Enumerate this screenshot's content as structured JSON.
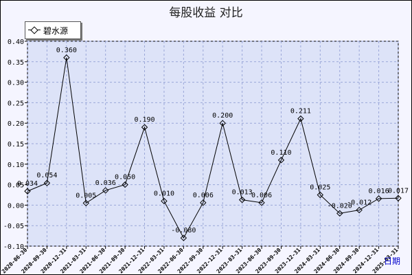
{
  "chart_data": {
    "type": "line",
    "title": "每股收益  对比",
    "xlabel": "日期",
    "ylabel": "",
    "ylim": [
      -0.1,
      0.4
    ],
    "yticks": [
      "-0.10",
      "-0.05",
      "0.00",
      "0.05",
      "0.10",
      "0.15",
      "0.20",
      "0.25",
      "0.30",
      "0.35",
      "0.40"
    ],
    "ytick_values": [
      -0.1,
      -0.05,
      0.0,
      0.05,
      0.1,
      0.15,
      0.2,
      0.25,
      0.3,
      0.35,
      0.4
    ],
    "categories": [
      "2020-06-30",
      "2020-09-30",
      "2020-12-31",
      "2021-03-31",
      "2021-06-30",
      "2021-09-30",
      "2021-12-31",
      "2022-03-31",
      "2022-06-30",
      "2022-09-30",
      "2022-12-31",
      "2023-03-31",
      "2023-06-30",
      "2023-09-30",
      "2023-12-31",
      "2024-03-31",
      "2024-06-30",
      "2024-09-30",
      "2024-12-31",
      "2025-03-31"
    ],
    "grid": true,
    "legend_position": "top-left",
    "series": [
      {
        "name": "碧水源",
        "color": "#000000",
        "values": [
          0.034,
          0.054,
          0.36,
          0.005,
          0.036,
          0.05,
          0.19,
          0.01,
          -0.08,
          0.006,
          0.2,
          0.013,
          0.006,
          0.11,
          0.211,
          0.025,
          -0.02,
          -0.012,
          0.016,
          0.017
        ],
        "labels": [
          "0.034",
          "0.054",
          "0.360",
          "0.005",
          "0.036",
          "0.050",
          "0.190",
          "0.010",
          "-0.080",
          "0.006",
          "0.200",
          "0.013",
          "0.006",
          "0.110",
          "0.211",
          "0.025",
          "-0.020",
          "-0.012",
          "0.016",
          "0.017"
        ]
      }
    ]
  }
}
